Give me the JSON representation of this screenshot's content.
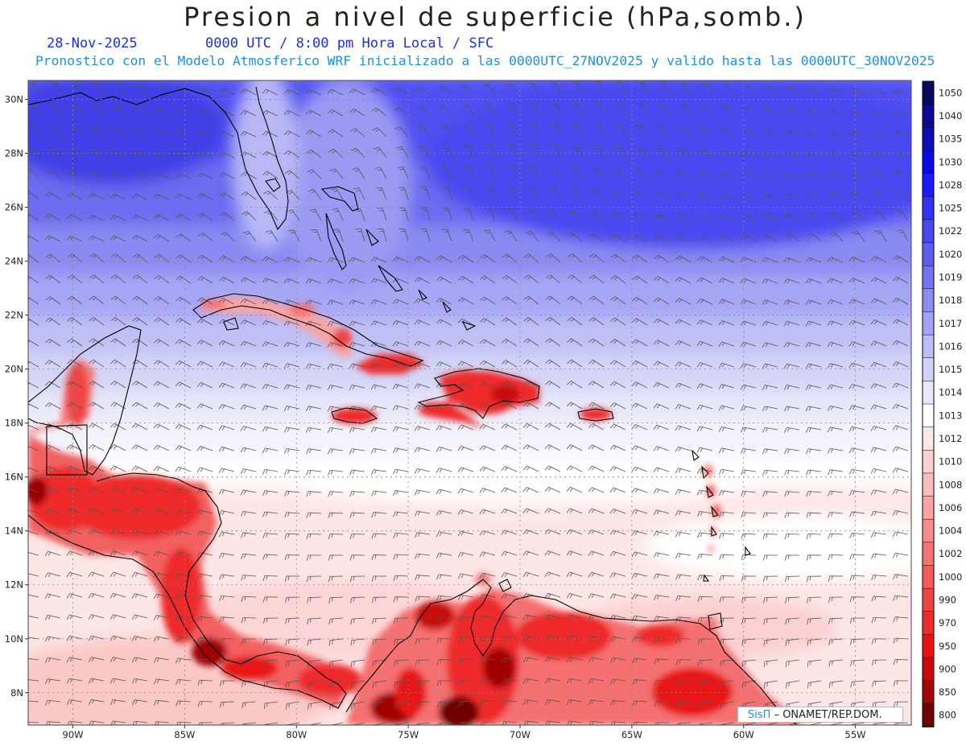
{
  "title": "Presion a nivel de superficie (hPa,somb.)",
  "date_label": "28-Nov-2025",
  "time_label": "0000 UTC / 8:00 pm Hora Local / SFC",
  "model_label": "Pronostico con el Modelo Atmosferico WRF inicializado a las 0000UTC_27NOV2025 y valido hasta las  0000UTC_30NOV2025",
  "credit": {
    "brand": "SisΠ",
    "text": "– ONAMET/REP.DOM."
  },
  "lat_labels": [
    "30N",
    "28N",
    "26N",
    "24N",
    "22N",
    "20N",
    "18N",
    "16N",
    "14N",
    "12N",
    "10N",
    "8N"
  ],
  "lon_labels": [
    "90W",
    "85W",
    "80W",
    "75W",
    "70W",
    "65W",
    "60W",
    "55W"
  ],
  "map_extent": {
    "lon_min": -92,
    "lon_max": -52.5,
    "lat_min": 6.8,
    "lat_max": 30.7
  },
  "colorbar": {
    "levels": [
      "1050",
      "1040",
      "1035",
      "1030",
      "1028",
      "1025",
      "1022",
      "1020",
      "1019",
      "1018",
      "1017",
      "1016",
      "1015",
      "1014",
      "1013",
      "1012",
      "1010",
      "1008",
      "1006",
      "1004",
      "1002",
      "1000",
      "990",
      "970",
      "950",
      "900",
      "850",
      "800"
    ],
    "colors": [
      "#0a0a5c",
      "#0b0b8c",
      "#0c0cb8",
      "#0a0ae6",
      "#1c1cfa",
      "#3232f5",
      "#4848f0",
      "#5e5eee",
      "#7474f0",
      "#8c8cf2",
      "#a4a4f4",
      "#bcbcf6",
      "#d2d2f8",
      "#e8e8fb",
      "#ffffff",
      "#fde8e8",
      "#fcd2d2",
      "#fbbcbc",
      "#f9a4a4",
      "#f78c8c",
      "#f57474",
      "#f25c5c",
      "#f04444",
      "#ee2c2c",
      "#e81414",
      "#c80a0a",
      "#a00606",
      "#700404"
    ]
  },
  "legend_symbols": [
    "wind-barbs"
  ]
}
